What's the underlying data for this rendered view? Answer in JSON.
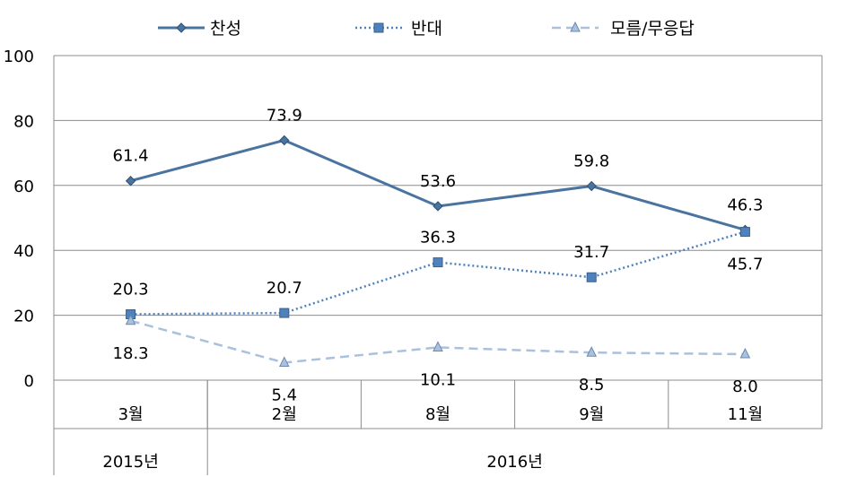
{
  "chart_data": {
    "type": "line",
    "categories": [
      "3월",
      "2월",
      "8월",
      "9월",
      "11월"
    ],
    "year_groups": [
      {
        "label": "2015년",
        "span": 1
      },
      {
        "label": "2016년",
        "span": 4
      }
    ],
    "ylim": [
      0,
      100
    ],
    "yticks": [
      0,
      20,
      40,
      60,
      80,
      100
    ],
    "grid": true,
    "legend_position": "top",
    "series": [
      {
        "name": "찬성",
        "values": [
          61.4,
          73.9,
          53.6,
          59.8,
          46.3
        ],
        "color": "#4a74a0",
        "style": "solid",
        "marker": "diamond",
        "label_pos": [
          "above",
          "above",
          "above",
          "above",
          "above"
        ]
      },
      {
        "name": "반대",
        "values": [
          20.3,
          20.7,
          36.3,
          31.7,
          45.7
        ],
        "color": "#4f81bd",
        "style": "dotted",
        "marker": "square",
        "label_pos": [
          "above",
          "above",
          "above",
          "above",
          "below"
        ]
      },
      {
        "name": "모름/무응답",
        "values": [
          18.3,
          5.4,
          10.1,
          8.5,
          8.0
        ],
        "color": "#a9c0de",
        "style": "dashed",
        "marker": "triangle",
        "label_pos": [
          "below",
          "below",
          "below",
          "below",
          "below"
        ]
      }
    ],
    "label_text": [
      [
        "61.4",
        "73.9",
        "53.6",
        "59.8",
        "46.3"
      ],
      [
        "20.3",
        "20.7",
        "36.3",
        "31.7",
        "45.7"
      ],
      [
        "18.3",
        "5.4",
        "10.1",
        "8.5",
        "8.0"
      ]
    ]
  }
}
